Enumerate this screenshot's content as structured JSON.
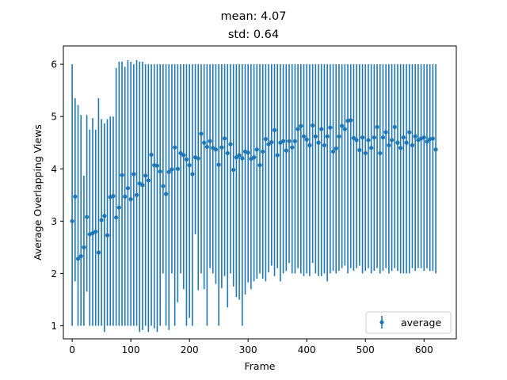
{
  "chart_data": {
    "type": "scatter",
    "title_lines": [
      "mean: 4.07",
      "std: 0.64"
    ],
    "xlabel": "Frame",
    "ylabel": "Average Overlapping Views",
    "xlim": [
      -15,
      655
    ],
    "ylim": [
      0.75,
      6.35
    ],
    "xticks": [
      0,
      100,
      200,
      300,
      400,
      500,
      600
    ],
    "yticks": [
      1,
      2,
      3,
      4,
      5,
      6
    ],
    "grid": false,
    "legend_position": "lower-right",
    "color": "#1f77b4",
    "series": [
      {
        "name": "average",
        "x": [
          0,
          5,
          10,
          15,
          20,
          25,
          30,
          35,
          40,
          45,
          50,
          55,
          60,
          65,
          70,
          75,
          80,
          85,
          90,
          95,
          100,
          105,
          110,
          115,
          120,
          125,
          130,
          135,
          140,
          145,
          150,
          155,
          160,
          165,
          170,
          175,
          180,
          185,
          190,
          195,
          200,
          205,
          210,
          215,
          220,
          225,
          230,
          235,
          240,
          245,
          250,
          255,
          260,
          265,
          270,
          275,
          280,
          285,
          290,
          295,
          300,
          305,
          310,
          315,
          320,
          325,
          330,
          335,
          340,
          345,
          350,
          355,
          360,
          365,
          370,
          375,
          380,
          385,
          390,
          395,
          400,
          405,
          410,
          415,
          420,
          425,
          430,
          435,
          440,
          445,
          450,
          455,
          460,
          465,
          470,
          475,
          480,
          485,
          490,
          495,
          500,
          505,
          510,
          515,
          520,
          525,
          530,
          535,
          540,
          545,
          550,
          555,
          560,
          565,
          570,
          575,
          580,
          585,
          590,
          595,
          600,
          605,
          610,
          615,
          620
        ],
        "y": [
          3.0,
          3.47,
          2.28,
          2.33,
          2.5,
          3.08,
          2.75,
          2.77,
          2.8,
          2.4,
          3.02,
          3.1,
          2.73,
          3.46,
          3.48,
          3.07,
          3.26,
          3.88,
          3.47,
          3.63,
          3.42,
          3.9,
          3.5,
          3.72,
          3.69,
          3.87,
          3.78,
          4.27,
          4.07,
          4.06,
          3.95,
          3.67,
          3.52,
          3.94,
          3.99,
          4.41,
          4.0,
          4.3,
          4.26,
          4.18,
          4.07,
          3.9,
          4.22,
          4.2,
          4.67,
          4.5,
          4.42,
          4.53,
          4.4,
          4.37,
          4.08,
          4.41,
          4.58,
          4.3,
          4.47,
          3.98,
          4.22,
          4.26,
          4.2,
          4.33,
          4.31,
          4.19,
          4.22,
          4.37,
          4.07,
          4.33,
          4.57,
          4.47,
          4.51,
          4.74,
          4.26,
          4.5,
          4.53,
          4.35,
          4.53,
          4.41,
          4.53,
          4.76,
          4.82,
          4.62,
          4.56,
          4.45,
          4.83,
          4.62,
          4.5,
          4.76,
          4.45,
          4.62,
          4.79,
          4.33,
          4.39,
          4.62,
          4.82,
          4.76,
          4.92,
          4.93,
          4.59,
          4.55,
          4.36,
          4.6,
          4.3,
          4.55,
          4.4,
          4.6,
          4.8,
          4.3,
          4.6,
          4.7,
          4.45,
          4.55,
          4.8,
          4.5,
          4.4,
          4.6,
          4.5,
          4.7,
          4.45,
          4.62,
          4.55,
          4.58,
          4.6,
          4.52,
          4.57,
          4.58,
          4.37
        ],
        "yerr_low": [
          1.0,
          1.85,
          1.0,
          1.0,
          1.0,
          1.65,
          1.0,
          1.0,
          1.0,
          1.0,
          1.0,
          0.88,
          1.0,
          1.0,
          1.0,
          1.0,
          1.0,
          1.0,
          1.0,
          1.0,
          1.0,
          1.0,
          1.0,
          0.88,
          0.92,
          1.0,
          0.88,
          1.0,
          0.95,
          0.88,
          1.0,
          2.0,
          1.0,
          0.92,
          2.0,
          1.0,
          1.45,
          2.0,
          1.7,
          1.0,
          1.15,
          1.0,
          2.75,
          1.68,
          2.0,
          1.7,
          1.0,
          2.1,
          2.0,
          1.8,
          1.0,
          1.72,
          1.95,
          1.35,
          2.0,
          1.75,
          1.55,
          1.5,
          1.0,
          1.6,
          1.83,
          1.7,
          1.85,
          1.9,
          2.0,
          1.9,
          1.85,
          2.02,
          2.15,
          1.95,
          2.1,
          1.85,
          2.0,
          2.05,
          2.2,
          2.0,
          2.0,
          2.1,
          2.0,
          1.95,
          2.0,
          1.95,
          2.2,
          2.0,
          1.95,
          1.95,
          2.0,
          1.85,
          2.0,
          2.05,
          2.0,
          2.05,
          2.1,
          2.15,
          2.0,
          2.1,
          2.05,
          2.1,
          2.15,
          2.0,
          2.05,
          2.1,
          2.0,
          2.05,
          2.1,
          2.0,
          2.05,
          2.1,
          2.0,
          2.05,
          2.1,
          2.05,
          2.0,
          2.0,
          2.0,
          2.0,
          2.1,
          2.05,
          2.1,
          2.1,
          2.05,
          2.1,
          2.05,
          2.05,
          2.0
        ],
        "yerr_high": [
          6.0,
          5.35,
          5.22,
          5.03,
          3.87,
          5.03,
          4.75,
          4.97,
          4.75,
          5.35,
          4.95,
          4.87,
          4.95,
          5.0,
          5.0,
          5.93,
          6.05,
          6.05,
          5.95,
          6.08,
          6.05,
          6.0,
          6.08,
          6.05,
          6.05,
          6.0,
          6.0,
          6.0,
          6.0,
          6.0,
          6.0,
          6.0,
          6.0,
          6.0,
          6.0,
          6.0,
          6.0,
          6.0,
          6.0,
          6.0,
          6.0,
          6.0,
          6.0,
          6.0,
          6.0,
          6.0,
          6.0,
          6.0,
          6.0,
          6.0,
          6.0,
          6.0,
          6.0,
          6.0,
          6.0,
          6.0,
          6.0,
          6.0,
          6.0,
          6.0,
          6.0,
          6.0,
          6.0,
          6.0,
          6.0,
          6.0,
          6.0,
          6.0,
          6.0,
          6.0,
          6.0,
          6.0,
          6.0,
          6.0,
          6.0,
          6.0,
          6.0,
          6.0,
          6.0,
          6.0,
          6.0,
          6.0,
          6.0,
          6.0,
          6.0,
          6.0,
          6.0,
          6.0,
          6.0,
          6.0,
          6.0,
          6.0,
          6.0,
          6.0,
          6.0,
          6.0,
          6.0,
          6.0,
          6.0,
          6.0,
          6.0,
          6.0,
          6.0,
          6.0,
          6.0,
          6.0,
          6.0,
          6.0,
          6.0,
          6.0,
          6.0,
          6.0,
          6.0,
          6.0,
          6.0,
          6.0,
          6.0,
          6.0,
          6.0,
          6.0,
          6.0,
          6.0,
          6.0,
          6.0,
          6.0
        ]
      }
    ]
  }
}
